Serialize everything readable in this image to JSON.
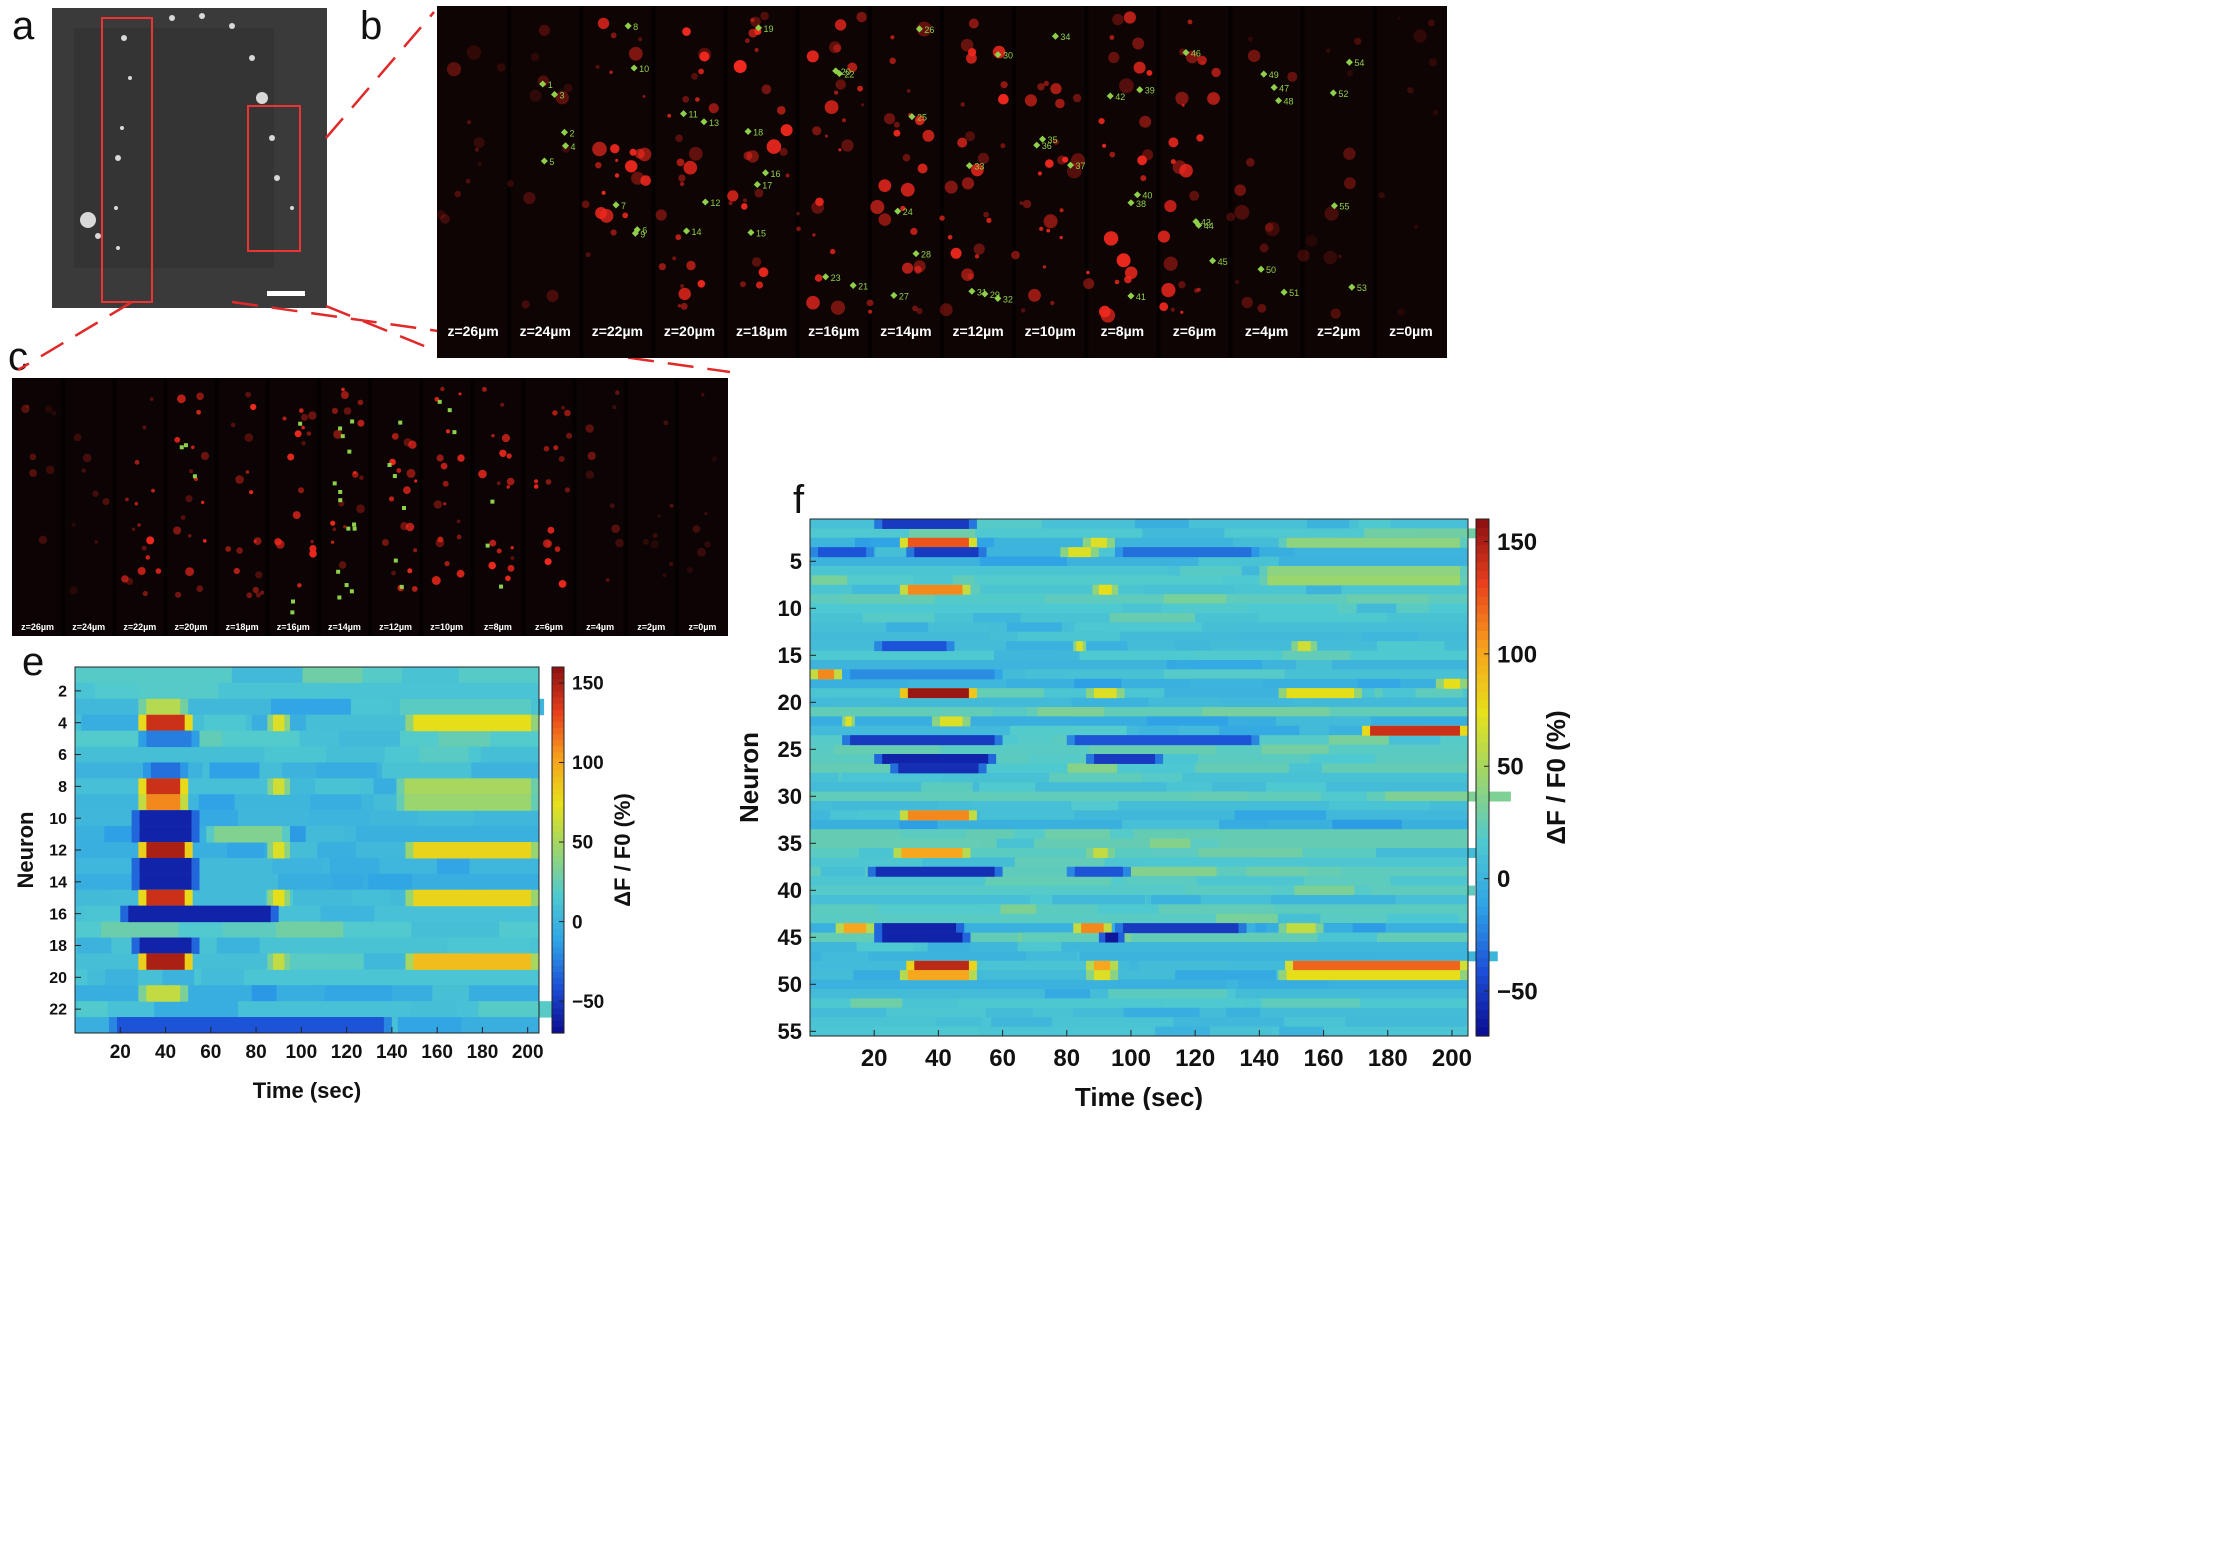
{
  "panels": {
    "a": "a",
    "b": "b",
    "c": "c",
    "e": "e",
    "f": "f"
  },
  "panel_b": {
    "z_labels": [
      "z=26µm",
      "z=24µm",
      "z=22µm",
      "z=20µm",
      "z=18µm",
      "z=16µm",
      "z=14µm",
      "z=12µm",
      "z=10µm",
      "z=8µm",
      "z=6µm",
      "z=4µm",
      "z=2µm",
      "z=0µm"
    ],
    "neuron_ids": [
      "1",
      "2",
      "3",
      "4",
      "5",
      "6",
      "7",
      "8",
      "9",
      "10",
      "11",
      "12",
      "13",
      "14",
      "15",
      "16",
      "17",
      "18",
      "19",
      "20",
      "21",
      "22",
      "23",
      "24",
      "25",
      "26",
      "27",
      "28",
      "29",
      "30",
      "31",
      "32",
      "33",
      "34",
      "35",
      "36",
      "37",
      "38",
      "39",
      "40",
      "41",
      "42",
      "43",
      "44",
      "45",
      "46",
      "47",
      "48",
      "49",
      "50",
      "51",
      "52",
      "53",
      "54",
      "55"
    ]
  },
  "panel_c": {
    "z_labels": [
      "z=26µm",
      "z=24µm",
      "z=22µm",
      "z=20µm",
      "z=18µm",
      "z=16µm",
      "z=14µm",
      "z=12µm",
      "z=10µm",
      "z=8µm",
      "z=6µm",
      "z=4µm",
      "z=2µm",
      "z=0µm"
    ]
  },
  "colorbar": {
    "label": "ΔF / F0 (%)",
    "ticks": [
      "150",
      "100",
      "50",
      "0",
      "−50"
    ],
    "colors": [
      "#0b0b8f",
      "#1c4fd6",
      "#2fa3e6",
      "#4fc9d0",
      "#9bd56e",
      "#e6e11a",
      "#f7a11d",
      "#e8401c",
      "#8a0f12"
    ]
  },
  "chart_data": [
    {
      "panel": "e",
      "type": "heatmap",
      "title": "",
      "xlabel": "Time (sec)",
      "ylabel": "Neuron",
      "xlim": [
        0,
        205
      ],
      "xticks": [
        20,
        40,
        60,
        80,
        100,
        120,
        140,
        160,
        180,
        200
      ],
      "ytick_labels": [
        "2",
        "4",
        "6",
        "8",
        "10",
        "12",
        "14",
        "16",
        "18",
        "20",
        "22"
      ],
      "n_neurons": 23,
      "colorbar_label": "ΔF / F0 (%)",
      "colorbar_range": [
        -70,
        160
      ],
      "colorbar_ticks": [
        150,
        100,
        50,
        0,
        -50
      ],
      "events": [
        {
          "neuron": 3,
          "start": 28,
          "end": 50,
          "value": 55
        },
        {
          "neuron": 3,
          "start": 140,
          "end": 205,
          "value": 20
        },
        {
          "neuron": 4,
          "start": 28,
          "end": 52,
          "value": 140
        },
        {
          "neuron": 4,
          "start": 85,
          "end": 95,
          "value": 70
        },
        {
          "neuron": 4,
          "start": 146,
          "end": 205,
          "value": 75
        },
        {
          "neuron": 5,
          "start": 28,
          "end": 55,
          "value": -25
        },
        {
          "neuron": 7,
          "start": 30,
          "end": 50,
          "value": -30
        },
        {
          "neuron": 8,
          "start": 28,
          "end": 50,
          "value": 140
        },
        {
          "neuron": 8,
          "start": 85,
          "end": 95,
          "value": 65
        },
        {
          "neuron": 8,
          "start": 142,
          "end": 205,
          "value": 50
        },
        {
          "neuron": 9,
          "start": 28,
          "end": 50,
          "value": 110
        },
        {
          "neuron": 9,
          "start": 142,
          "end": 205,
          "value": 45
        },
        {
          "neuron": 10,
          "start": 25,
          "end": 55,
          "value": -60
        },
        {
          "neuron": 11,
          "start": 25,
          "end": 55,
          "value": -60
        },
        {
          "neuron": 11,
          "start": 58,
          "end": 95,
          "value": 35
        },
        {
          "neuron": 12,
          "start": 28,
          "end": 52,
          "value": 150
        },
        {
          "neuron": 12,
          "start": 85,
          "end": 95,
          "value": 70
        },
        {
          "neuron": 12,
          "start": 146,
          "end": 205,
          "value": 80
        },
        {
          "neuron": 13,
          "start": 25,
          "end": 55,
          "value": -60
        },
        {
          "neuron": 14,
          "start": 25,
          "end": 55,
          "value": -60
        },
        {
          "neuron": 15,
          "start": 28,
          "end": 52,
          "value": 140
        },
        {
          "neuron": 15,
          "start": 85,
          "end": 95,
          "value": 75
        },
        {
          "neuron": 15,
          "start": 146,
          "end": 205,
          "value": 80
        },
        {
          "neuron": 16,
          "start": 20,
          "end": 90,
          "value": -60
        },
        {
          "neuron": 18,
          "start": 25,
          "end": 55,
          "value": -60
        },
        {
          "neuron": 19,
          "start": 28,
          "end": 52,
          "value": 150
        },
        {
          "neuron": 19,
          "start": 85,
          "end": 95,
          "value": 60
        },
        {
          "neuron": 19,
          "start": 146,
          "end": 205,
          "value": 90
        },
        {
          "neuron": 21,
          "start": 28,
          "end": 50,
          "value": 60
        },
        {
          "neuron": 23,
          "start": 15,
          "end": 140,
          "value": -40
        }
      ]
    },
    {
      "panel": "f",
      "type": "heatmap",
      "title": "",
      "xlabel": "Time (sec)",
      "ylabel": "Neuron",
      "xlim": [
        0,
        205
      ],
      "xticks": [
        20,
        40,
        60,
        80,
        100,
        120,
        140,
        160,
        180,
        200
      ],
      "ytick_labels": [
        "5",
        "10",
        "15",
        "20",
        "25",
        "30",
        "35",
        "40",
        "45",
        "50",
        "55"
      ],
      "n_neurons": 55,
      "colorbar_label": "ΔF / F0 (%)",
      "colorbar_range": [
        -70,
        160
      ],
      "colorbar_ticks": [
        150,
        100,
        50,
        0,
        -50
      ],
      "events": [
        {
          "neuron": 1,
          "start": 20,
          "end": 52,
          "value": -50
        },
        {
          "neuron": 3,
          "start": 28,
          "end": 52,
          "value": 125
        },
        {
          "neuron": 3,
          "start": 85,
          "end": 95,
          "value": 70
        },
        {
          "neuron": 3,
          "start": 146,
          "end": 205,
          "value": 40
        },
        {
          "neuron": 4,
          "start": 0,
          "end": 20,
          "value": -40
        },
        {
          "neuron": 4,
          "start": 30,
          "end": 55,
          "value": -50
        },
        {
          "neuron": 4,
          "start": 78,
          "end": 90,
          "value": 70
        },
        {
          "neuron": 4,
          "start": 95,
          "end": 140,
          "value": -30
        },
        {
          "neuron": 6,
          "start": 140,
          "end": 205,
          "value": 40
        },
        {
          "neuron": 7,
          "start": 140,
          "end": 205,
          "value": 45
        },
        {
          "neuron": 8,
          "start": 28,
          "end": 50,
          "value": 110
        },
        {
          "neuron": 8,
          "start": 88,
          "end": 96,
          "value": 75
        },
        {
          "neuron": 14,
          "start": 20,
          "end": 45,
          "value": -40
        },
        {
          "neuron": 14,
          "start": 82,
          "end": 86,
          "value": 70
        },
        {
          "neuron": 14,
          "start": 150,
          "end": 158,
          "value": 65
        },
        {
          "neuron": 17,
          "start": 0,
          "end": 10,
          "value": 110
        },
        {
          "neuron": 17,
          "start": 10,
          "end": 60,
          "value": -20
        },
        {
          "neuron": 19,
          "start": 28,
          "end": 52,
          "value": 155
        },
        {
          "neuron": 19,
          "start": 86,
          "end": 98,
          "value": 70
        },
        {
          "neuron": 19,
          "start": 146,
          "end": 172,
          "value": 75
        },
        {
          "neuron": 18,
          "start": 195,
          "end": 205,
          "value": 75
        },
        {
          "neuron": 22,
          "start": 38,
          "end": 50,
          "value": 70
        },
        {
          "neuron": 22,
          "start": 10,
          "end": 14,
          "value": 70
        },
        {
          "neuron": 23,
          "start": 172,
          "end": 205,
          "value": 140
        },
        {
          "neuron": 24,
          "start": 10,
          "end": 60,
          "value": -50
        },
        {
          "neuron": 24,
          "start": 80,
          "end": 140,
          "value": -40
        },
        {
          "neuron": 26,
          "start": 20,
          "end": 58,
          "value": -60
        },
        {
          "neuron": 26,
          "start": 86,
          "end": 110,
          "value": -50
        },
        {
          "neuron": 27,
          "start": 25,
          "end": 55,
          "value": -55
        },
        {
          "neuron": 32,
          "start": 28,
          "end": 52,
          "value": 110
        },
        {
          "neuron": 36,
          "start": 26,
          "end": 50,
          "value": 100
        },
        {
          "neuron": 36,
          "start": 86,
          "end": 95,
          "value": 60
        },
        {
          "neuron": 38,
          "start": 18,
          "end": 60,
          "value": -55
        },
        {
          "neuron": 38,
          "start": 80,
          "end": 100,
          "value": -40
        },
        {
          "neuron": 44,
          "start": 8,
          "end": 20,
          "value": 100
        },
        {
          "neuron": 44,
          "start": 20,
          "end": 48,
          "value": -60
        },
        {
          "neuron": 44,
          "start": 82,
          "end": 94,
          "value": 110
        },
        {
          "neuron": 44,
          "start": 95,
          "end": 136,
          "value": -50
        },
        {
          "neuron": 44,
          "start": 146,
          "end": 160,
          "value": 60
        },
        {
          "neuron": 45,
          "start": 20,
          "end": 50,
          "value": -60
        },
        {
          "neuron": 45,
          "start": 90,
          "end": 98,
          "value": -65
        },
        {
          "neuron": 48,
          "start": 30,
          "end": 52,
          "value": 145
        },
        {
          "neuron": 48,
          "start": 86,
          "end": 96,
          "value": 100
        },
        {
          "neuron": 48,
          "start": 148,
          "end": 205,
          "value": 120
        },
        {
          "neuron": 49,
          "start": 28,
          "end": 52,
          "value": 100
        },
        {
          "neuron": 49,
          "start": 86,
          "end": 96,
          "value": 70
        },
        {
          "neuron": 49,
          "start": 146,
          "end": 205,
          "value": 75
        }
      ]
    }
  ]
}
